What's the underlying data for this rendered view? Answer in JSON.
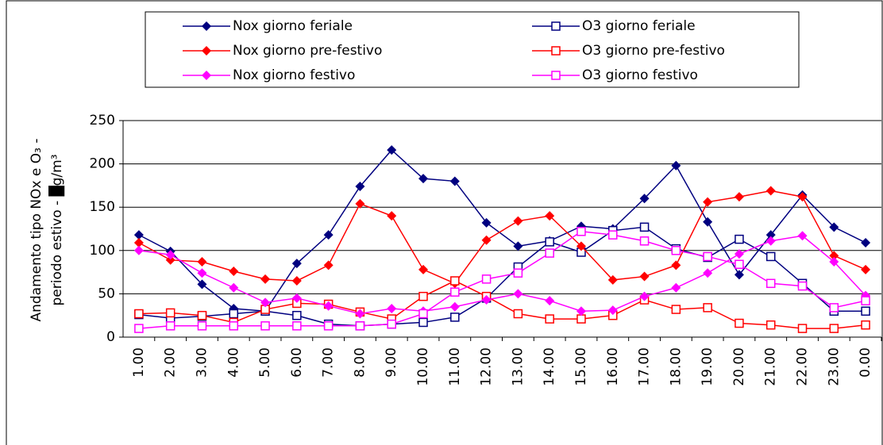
{
  "chart_data": {
    "type": "line",
    "ylabel": [
      "Andamento tipo NOx e O₃ -",
      "periodo estivo - █g/m³"
    ],
    "categories": [
      "1.00",
      "2.00",
      "3.00",
      "4.00",
      "5.00",
      "6.00",
      "7.00",
      "8.00",
      "9.00",
      "10.00",
      "11.00",
      "12.00",
      "13.00",
      "14.00",
      "15.00",
      "16.00",
      "17.00",
      "18.00",
      "19.00",
      "20.00",
      "21.00",
      "22.00",
      "23.00",
      "0.00"
    ],
    "ylim": [
      0,
      250
    ],
    "yticks": [
      0,
      50,
      100,
      150,
      200,
      250
    ],
    "grid": true,
    "legend": "top",
    "series": [
      {
        "name": "Nox giorno feriale",
        "color": "#000080",
        "marker": "diamond",
        "values": [
          118,
          99,
          61,
          33,
          30,
          85,
          118,
          174,
          216,
          183,
          180,
          132,
          105,
          111,
          128,
          125,
          160,
          198,
          133,
          72,
          118,
          164,
          127,
          109
        ]
      },
      {
        "name": "O3 giorno feriale",
        "color": "#000080",
        "marker": "square",
        "values": [
          26,
          22,
          24,
          27,
          30,
          25,
          15,
          13,
          15,
          17,
          23,
          45,
          81,
          110,
          98,
          123,
          127,
          102,
          92,
          113,
          93,
          62,
          30,
          30
        ]
      },
      {
        "name": "Nox giorno pre-festivo",
        "color": "#ff0000",
        "marker": "diamond",
        "values": [
          109,
          89,
          87,
          76,
          67,
          65,
          83,
          154,
          140,
          78,
          62,
          112,
          134,
          140,
          105,
          66,
          70,
          83,
          156,
          162,
          169,
          162,
          94,
          78
        ]
      },
      {
        "name": "O3 giorno pre-festivo",
        "color": "#ff0000",
        "marker": "square",
        "values": [
          27,
          28,
          25,
          17,
          32,
          39,
          38,
          29,
          21,
          47,
          65,
          47,
          27,
          21,
          21,
          25,
          43,
          32,
          34,
          16,
          14,
          10,
          10,
          14
        ]
      },
      {
        "name": "Nox giorno festivo",
        "color": "#ff00ff",
        "marker": "diamond",
        "values": [
          100,
          95,
          74,
          57,
          40,
          45,
          36,
          27,
          33,
          30,
          35,
          43,
          50,
          42,
          30,
          31,
          47,
          57,
          74,
          96,
          111,
          117,
          87,
          48
        ]
      },
      {
        "name": "O3 giorno festivo",
        "color": "#ff00ff",
        "marker": "square",
        "values": [
          10,
          13,
          13,
          13,
          13,
          13,
          13,
          13,
          15,
          27,
          52,
          67,
          74,
          97,
          122,
          118,
          111,
          100,
          93,
          84,
          62,
          59,
          34,
          42
        ]
      }
    ]
  }
}
